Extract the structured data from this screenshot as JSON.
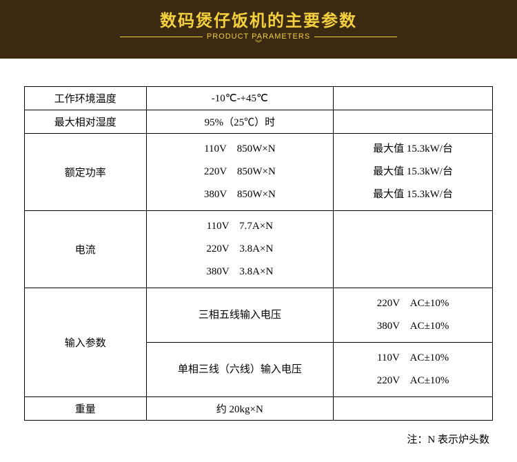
{
  "header": {
    "title": "数码煲仔饭机的主要参数",
    "subtitle": "PRODUCT PARAMETERS",
    "title_color": "#f4d03f",
    "bg_color": "#3b2a11"
  },
  "table": {
    "border_color": "#000000",
    "font_size": 15,
    "columns": [
      "label",
      "value",
      "extra"
    ],
    "rows": [
      {
        "label": "工作环境温度",
        "value": "-10℃-+45℃",
        "extra": ""
      },
      {
        "label": "最大相对湿度",
        "value": "95%（25℃）时",
        "extra": ""
      },
      {
        "label": "额定功率",
        "value_lines": [
          "110V　850W×N",
          "220V　850W×N",
          "380V　850W×N"
        ],
        "extra_lines": [
          "最大值 15.3kW/台",
          "最大值 15.3kW/台",
          "最大值 15.3kW/台"
        ]
      },
      {
        "label": "电流",
        "value_lines": [
          "110V　7.7A×N",
          "220V　3.8A×N",
          "380V　3.8A×N"
        ],
        "extra": ""
      },
      {
        "label": "输入参数",
        "value": "三相五线输入电压",
        "extra_lines": [
          "220V　AC±10%",
          "380V　AC±10%"
        ],
        "rowspan_label": 2,
        "row2_value": "单相三线（六线）输入电压",
        "row2_extra_lines": [
          "110V　AC±10%",
          "220V　AC±10%"
        ]
      },
      {
        "label": "重量",
        "value": "约 20kg×N",
        "extra": ""
      }
    ]
  },
  "footnote": "注：N 表示炉头数"
}
